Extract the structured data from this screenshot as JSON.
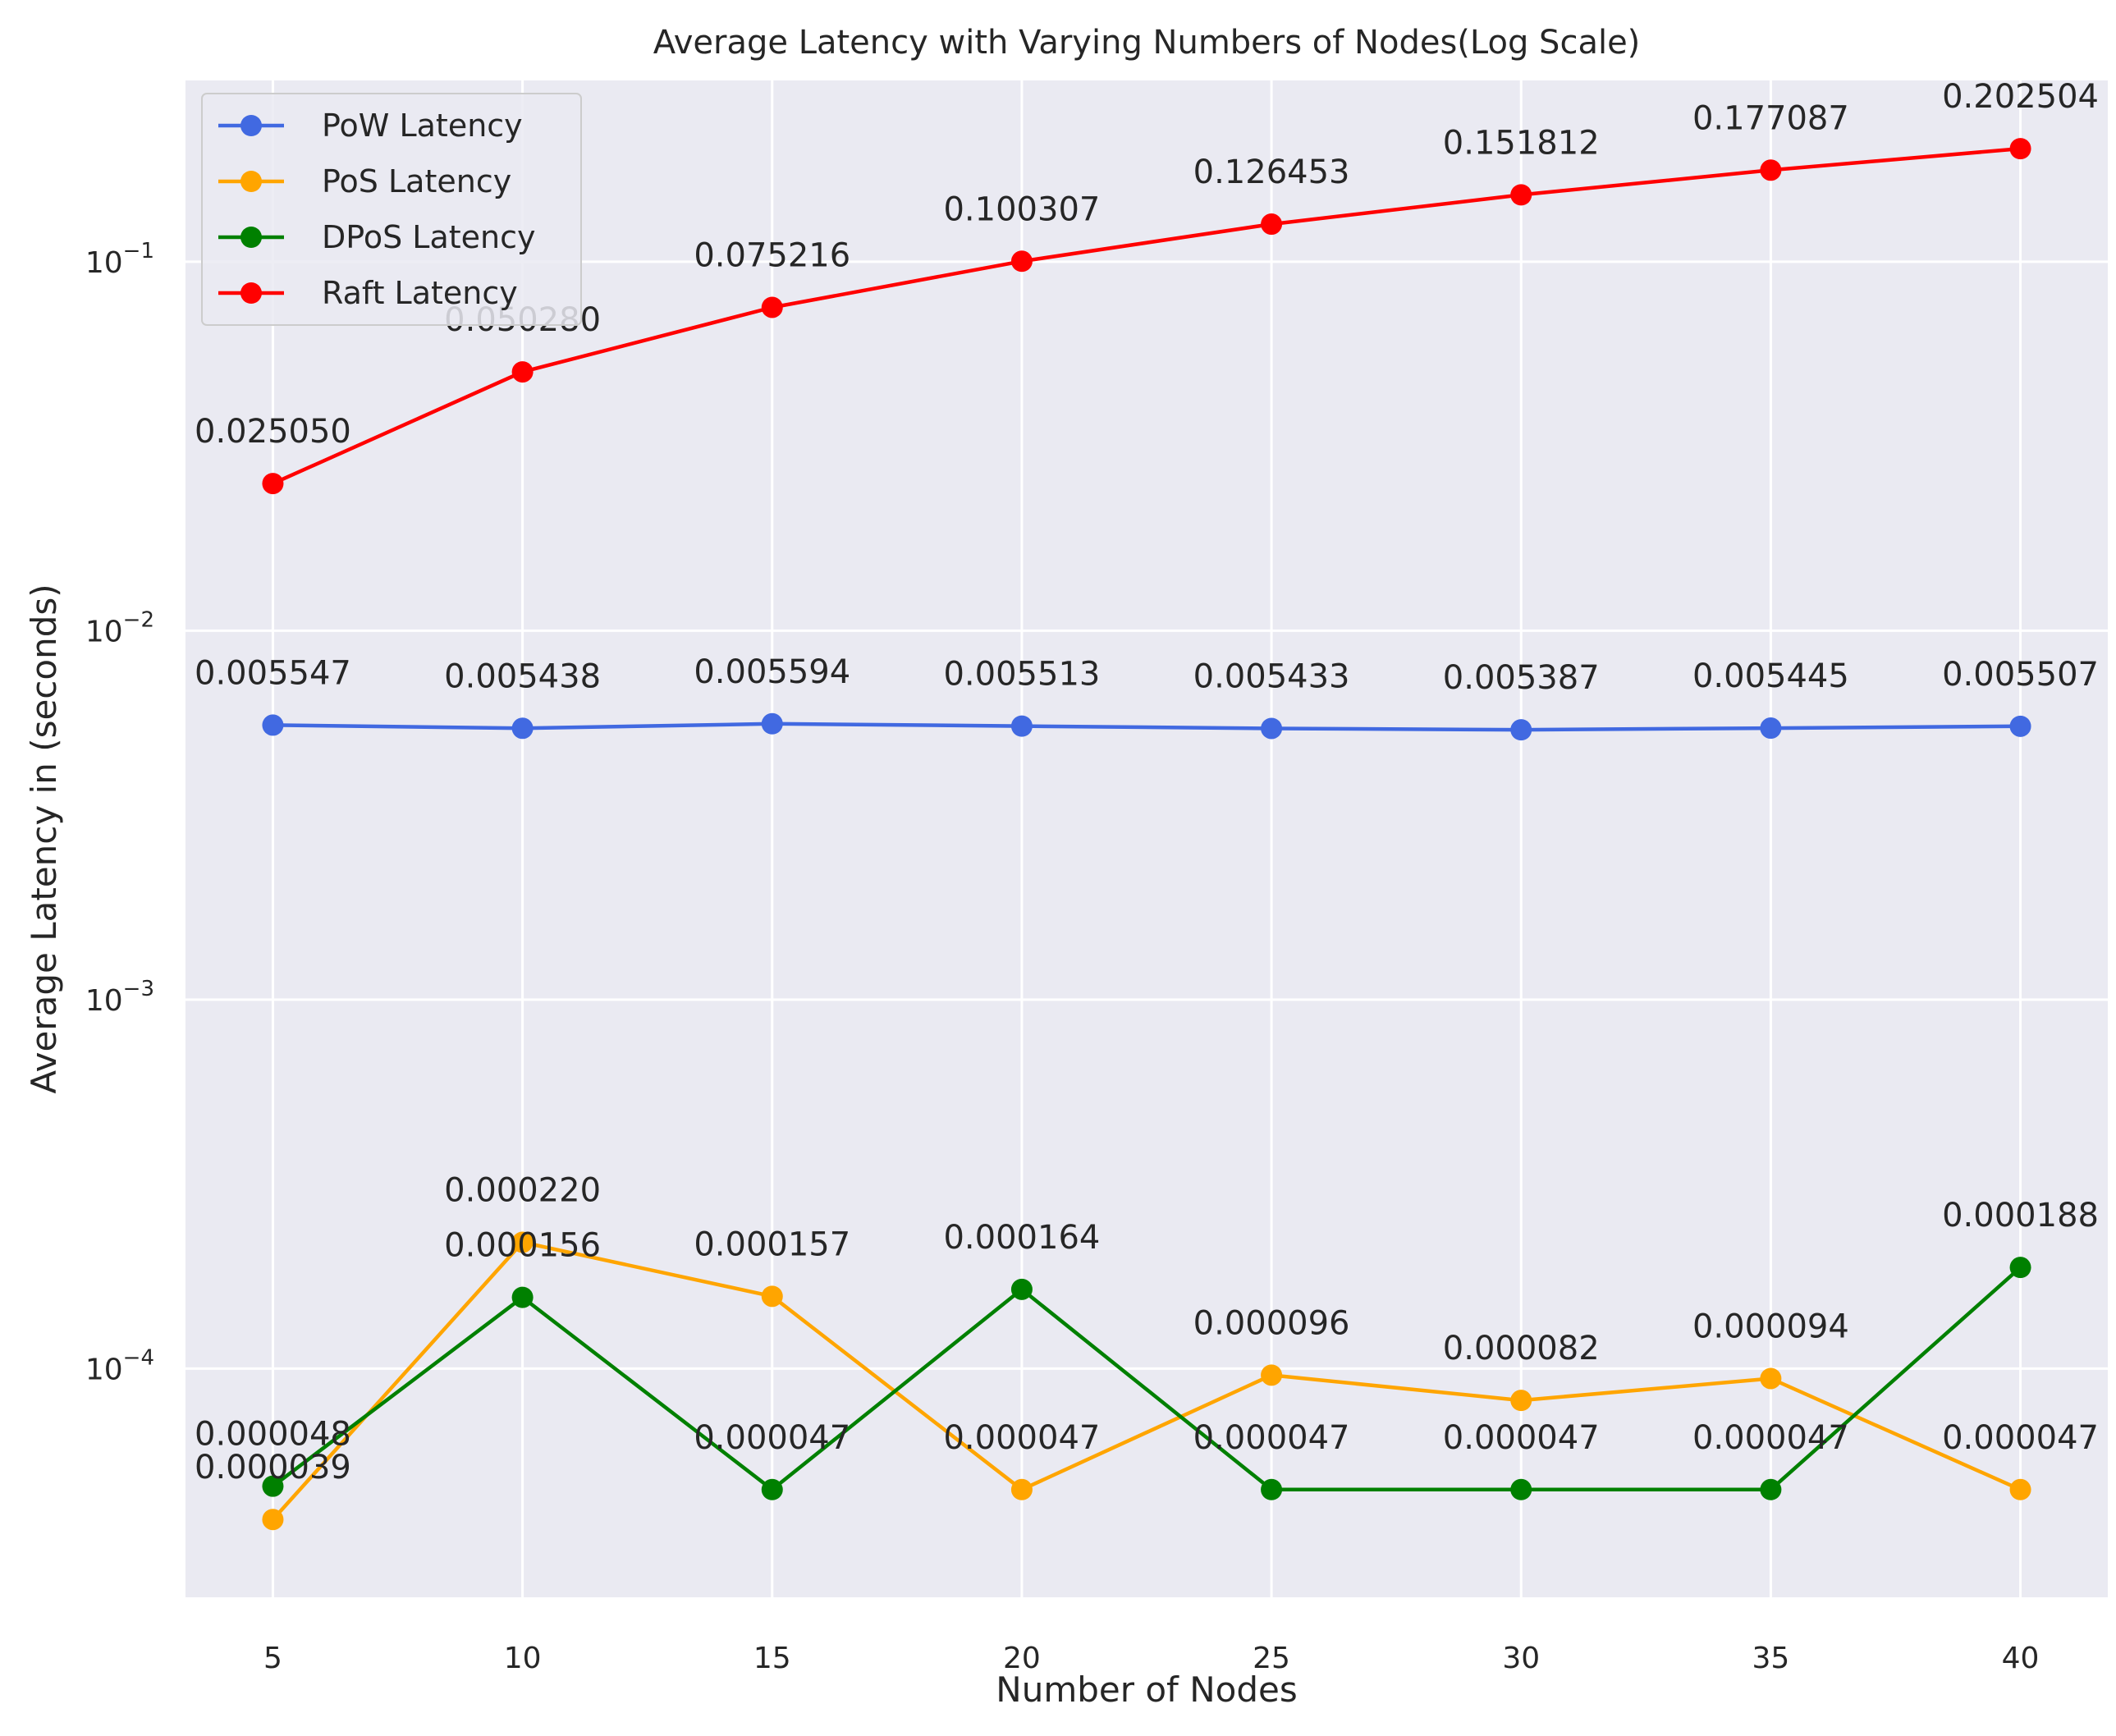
{
  "chart_data": {
    "type": "line",
    "title": "Average Latency with Varying Numbers of Nodes(Log Scale)",
    "xlabel": "Number of Nodes",
    "ylabel": "Average Latency in (seconds)",
    "yscale": "log",
    "x": [
      5,
      10,
      15,
      20,
      25,
      30,
      35,
      40
    ],
    "xlim": [
      3.25,
      41.75
    ],
    "ylim": [
      2.4e-05,
      0.31
    ],
    "yticks": [
      {
        "value": 0.1,
        "base": "10",
        "exp": "−1"
      },
      {
        "value": 0.01,
        "base": "10",
        "exp": "−2"
      },
      {
        "value": 0.001,
        "base": "10",
        "exp": "−3"
      },
      {
        "value": 0.0001,
        "base": "10",
        "exp": "−4"
      }
    ],
    "grid": true,
    "legend_position": "top-left",
    "series": [
      {
        "name": "PoW Latency",
        "color": "#4169e1",
        "values": [
          0.005547,
          0.005438,
          0.005594,
          0.005513,
          0.005433,
          0.005387,
          0.005445,
          0.005507
        ],
        "labels": [
          "0.005547",
          "0.005438",
          "0.005594",
          "0.005513",
          "0.005433",
          "0.005387",
          "0.005445",
          "0.005507"
        ]
      },
      {
        "name": "PoS Latency",
        "color": "#ffa500",
        "values": [
          3.9e-05,
          0.00022,
          0.000157,
          4.7e-05,
          9.6e-05,
          8.2e-05,
          9.4e-05,
          4.7e-05
        ],
        "labels": [
          "0.000039",
          "0.000220",
          "0.000157",
          "0.000047",
          "0.000096",
          "0.000082",
          "0.000094",
          "0.000047"
        ]
      },
      {
        "name": "DPoS Latency",
        "color": "#008000",
        "values": [
          4.8e-05,
          0.000156,
          4.7e-05,
          0.000164,
          4.7e-05,
          4.7e-05,
          4.7e-05,
          0.000188
        ],
        "labels": [
          "0.000048",
          "0.000156",
          "0.000047",
          "0.000164",
          "0.000047",
          "0.000047",
          "0.000047",
          "0.000188"
        ]
      },
      {
        "name": "Raft Latency",
        "color": "#ff0000",
        "values": [
          0.02505,
          0.05028,
          0.075216,
          0.100307,
          0.126453,
          0.151812,
          0.177087,
          0.202504
        ],
        "labels": [
          "0.025050",
          "0.050280",
          "0.075216",
          "0.100307",
          "0.126453",
          "0.151812",
          "0.177087",
          "0.202504"
        ]
      }
    ]
  }
}
